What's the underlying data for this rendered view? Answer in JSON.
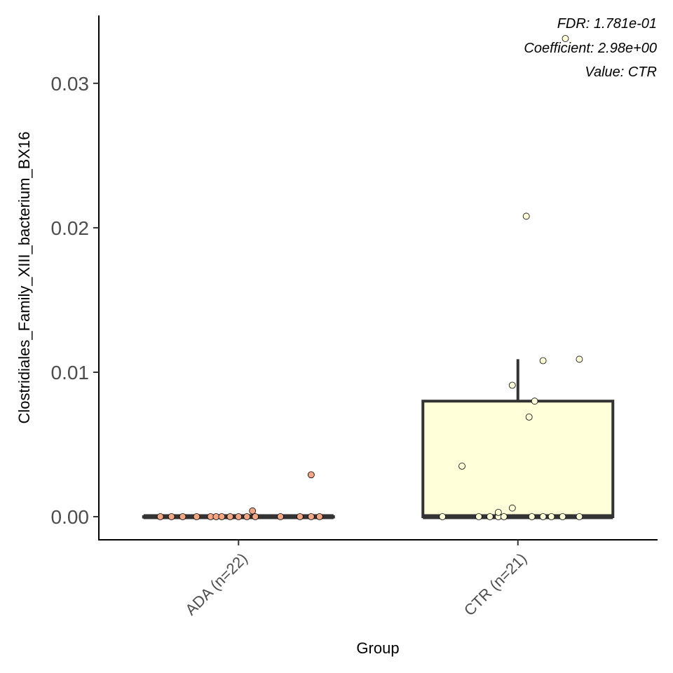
{
  "chart_data": {
    "type": "box",
    "xlabel": "Group",
    "ylabel": "Clostridiales_Family_XIII_bacterium_BX16",
    "ylim": [
      -0.0016,
      0.0347
    ],
    "yticks": [
      0.0,
      0.01,
      0.02,
      0.03
    ],
    "ytick_labels": [
      "0.00",
      "0.01",
      "0.02",
      "0.03"
    ],
    "categories": [
      "ADA (n=22)",
      "CTR (n=21)"
    ],
    "annotations": [
      "FDR: 1.781e-01",
      "Coefficient: 2.98e+00",
      "Value: CTR"
    ],
    "grid": false,
    "legend": "none",
    "groups": [
      {
        "name": "ADA (n=22)",
        "color": "#f4a582",
        "box": {
          "q1": 0.0,
          "median": 0.0,
          "q3": 0.0,
          "whisker_low": 0.0,
          "whisker_high": 0.0
        },
        "points": [
          {
            "x": -0.28,
            "y": 0.0
          },
          {
            "x": -0.24,
            "y": 0.0
          },
          {
            "x": -0.2,
            "y": 0.0
          },
          {
            "x": -0.15,
            "y": 0.0
          },
          {
            "x": -0.1,
            "y": 0.0
          },
          {
            "x": -0.08,
            "y": 0.0
          },
          {
            "x": -0.06,
            "y": 0.0
          },
          {
            "x": -0.03,
            "y": 0.0
          },
          {
            "x": 0.0,
            "y": 0.0
          },
          {
            "x": 0.03,
            "y": 0.0
          },
          {
            "x": 0.06,
            "y": 0.0
          },
          {
            "x": 0.15,
            "y": 0.0
          },
          {
            "x": 0.22,
            "y": 0.0
          },
          {
            "x": 0.26,
            "y": 0.0
          },
          {
            "x": 0.29,
            "y": 0.0
          },
          {
            "x": 0.05,
            "y": 0.0004
          },
          {
            "x": 0.26,
            "y": 0.0029
          }
        ]
      },
      {
        "name": "CTR (n=21)",
        "color": "#ffffd9",
        "box": {
          "q1": 0.0,
          "median": 0.0,
          "q3": 0.008,
          "whisker_low": 0.0,
          "whisker_high": 0.0109
        },
        "points": [
          {
            "x": -0.27,
            "y": 0.0
          },
          {
            "x": -0.14,
            "y": 0.0
          },
          {
            "x": -0.1,
            "y": 0.0
          },
          {
            "x": -0.07,
            "y": 0.0
          },
          {
            "x": -0.05,
            "y": 0.0
          },
          {
            "x": 0.05,
            "y": 0.0
          },
          {
            "x": 0.09,
            "y": 0.0
          },
          {
            "x": 0.12,
            "y": 0.0
          },
          {
            "x": 0.16,
            "y": 0.0
          },
          {
            "x": 0.22,
            "y": 0.0
          },
          {
            "x": -0.07,
            "y": 0.0003
          },
          {
            "x": -0.02,
            "y": 0.0006
          },
          {
            "x": -0.2,
            "y": 0.0035
          },
          {
            "x": 0.04,
            "y": 0.0069
          },
          {
            "x": 0.06,
            "y": 0.008
          },
          {
            "x": -0.02,
            "y": 0.0091
          },
          {
            "x": 0.09,
            "y": 0.0108
          },
          {
            "x": 0.22,
            "y": 0.0109
          },
          {
            "x": 0.03,
            "y": 0.0208
          },
          {
            "x": 0.17,
            "y": 0.0331
          }
        ]
      }
    ]
  }
}
